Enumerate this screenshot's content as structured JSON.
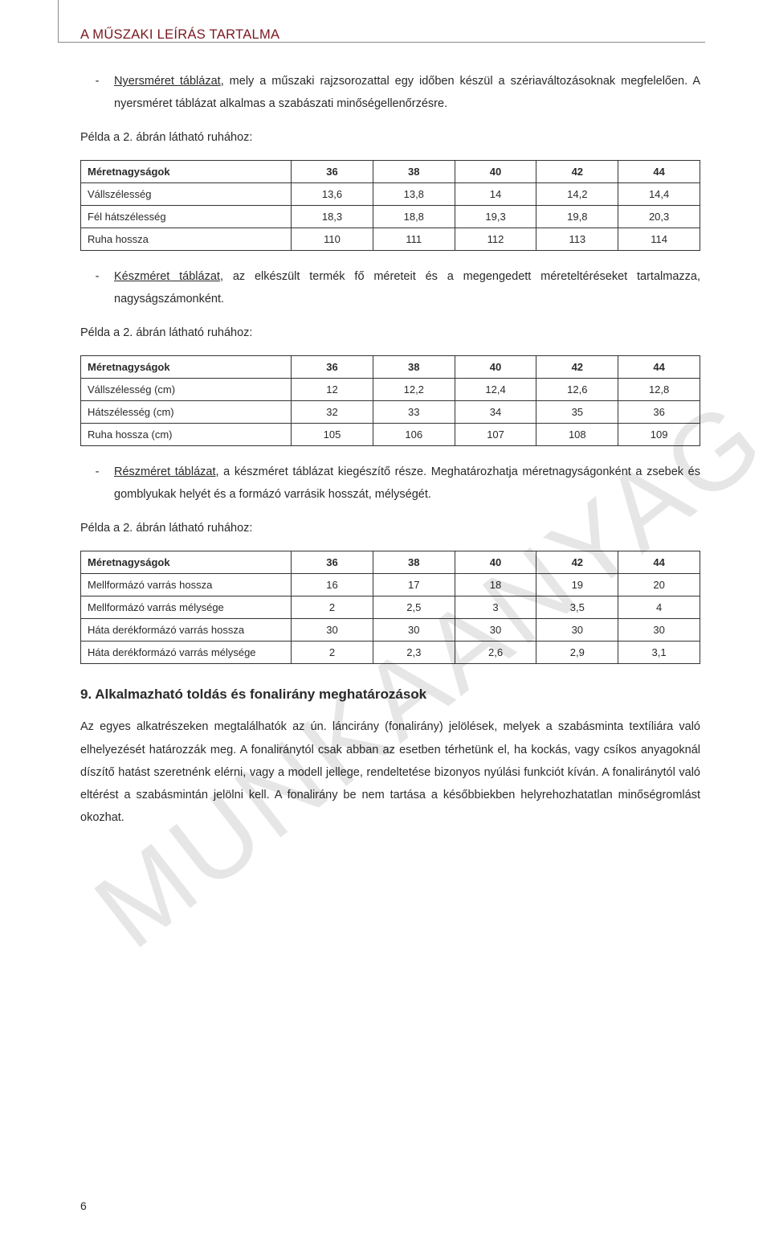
{
  "doc_title": "A MŰSZAKI LEÍRÁS TARTALMA",
  "watermark": "MUNKAANYAG",
  "page_number": "6",
  "intro": {
    "dash": "-",
    "lead_u": "Nyersméret táblázat",
    "rest": ", mely a műszaki rajzsorozattal egy időben készül a szériaváltozásoknak megfelelően. A nyersméret táblázat alkalmas a szabászati minőségellenőrzésre."
  },
  "example_label": "Példa a 2. ábrán látható ruhához:",
  "table1": {
    "header": [
      "Méretnagyságok",
      "36",
      "38",
      "40",
      "42",
      "44"
    ],
    "rows": [
      [
        "Vállszélesség",
        "13,6",
        "13,8",
        "14",
        "14,2",
        "14,4"
      ],
      [
        "Fél hátszélesség",
        "18,3",
        "18,8",
        "19,3",
        "19,8",
        "20,3"
      ],
      [
        "Ruha hossza",
        "110",
        "111",
        "112",
        "113",
        "114"
      ]
    ]
  },
  "block2": {
    "dash": "-",
    "lead_u": "Készméret táblázat",
    "rest": ", az elkészült termék fő méreteit és a megengedett méreteltéréseket tartalmazza, nagyságszámonként."
  },
  "table2": {
    "header": [
      "Méretnagyságok",
      "36",
      "38",
      "40",
      "42",
      "44"
    ],
    "rows": [
      [
        "Vállszélesség (cm)",
        "12",
        "12,2",
        "12,4",
        "12,6",
        "12,8"
      ],
      [
        "Hátszélesség (cm)",
        "32",
        "33",
        "34",
        "35",
        "36"
      ],
      [
        "Ruha hossza (cm)",
        "105",
        "106",
        "107",
        "108",
        "109"
      ]
    ]
  },
  "block3": {
    "dash": "-",
    "lead_u": "Részméret táblázat",
    "rest": ", a készméret táblázat kiegészítő része. Meghatározhatja méretnagyságonként a zsebek és gomblyukak helyét és a formázó varrásik hosszát, mélységét."
  },
  "table3": {
    "header": [
      "Méretnagyságok",
      "36",
      "38",
      "40",
      "42",
      "44"
    ],
    "rows": [
      [
        "Mellformázó varrás hossza",
        "16",
        "17",
        "18",
        "19",
        "20"
      ],
      [
        "Mellformázó varrás mélysége",
        "2",
        "2,5",
        "3",
        "3,5",
        "4"
      ],
      [
        "Háta derékformázó varrás hossza",
        "30",
        "30",
        "30",
        "30",
        "30"
      ],
      [
        "Háta derékformázó varrás mélysége",
        "2",
        "2,3",
        "2,6",
        "2,9",
        "3,1"
      ]
    ]
  },
  "h2": "9. Alkalmazható toldás és fonalirány meghatározások",
  "body2": "Az egyes alkatrészeken megtalálhatók az ún. láncirány (fonalirány) jelölések, melyek a szabásminta textíliára való elhelyezését határozzák meg. A fonaliránytól csak abban az esetben térhetünk el, ha kockás, vagy csíkos anyagoknál díszítő hatást szeretnénk elérni, vagy a modell jellege, rendeltetése bizonyos nyúlási funkciót kíván. A fonaliránytól való eltérést a szabásmintán jelölni kell. A fonalirány be nem tartása a későbbiekben helyrehozhatatlan minőségromlást okozhat."
}
